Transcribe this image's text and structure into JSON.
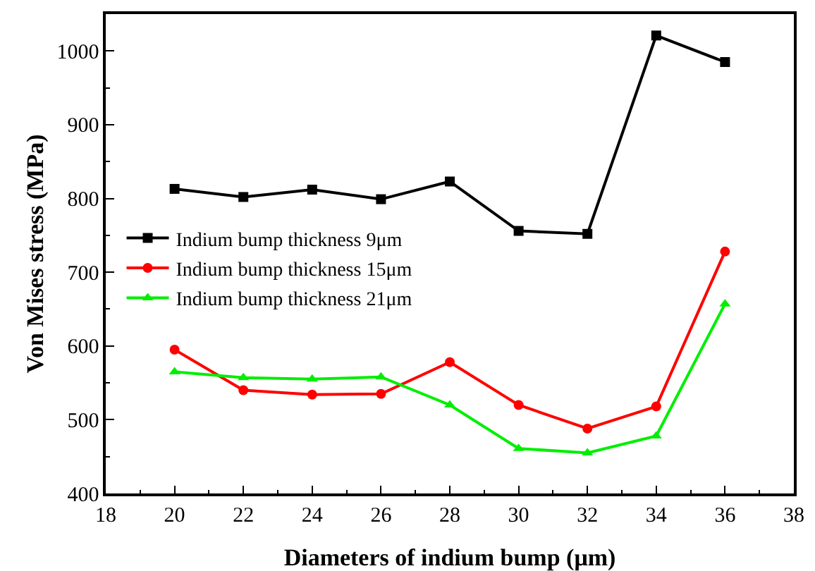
{
  "chart_data": {
    "type": "line",
    "xlabel": "Diameters of indium bump (μm)",
    "ylabel": "Von Mises stress (MPa)",
    "x": [
      20,
      22,
      24,
      26,
      28,
      30,
      32,
      34,
      36
    ],
    "series": [
      {
        "name": "Indium bump thickness 9μm",
        "color": "#000000",
        "marker": "square",
        "values": [
          813,
          802,
          812,
          799,
          823,
          756,
          752,
          1021,
          985
        ]
      },
      {
        "name": "Indium bump thickness 15μm",
        "color": "#ff0000",
        "marker": "circle",
        "values": [
          595,
          540,
          534,
          535,
          578,
          520,
          488,
          518,
          728
        ]
      },
      {
        "name": "Indium bump thickness 21μm",
        "color": "#00ee00",
        "marker": "triangle",
        "values": [
          565,
          557,
          555,
          558,
          520,
          461,
          455,
          478,
          657
        ]
      }
    ],
    "xlim": [
      18,
      38
    ],
    "xticks": [
      18,
      20,
      22,
      24,
      26,
      28,
      30,
      32,
      34,
      36,
      38
    ],
    "ylim": [
      400,
      1050
    ],
    "yticks": [
      400,
      500,
      600,
      700,
      800,
      900,
      1000
    ],
    "grid": false,
    "legend": "left",
    "line_style": "solid"
  }
}
